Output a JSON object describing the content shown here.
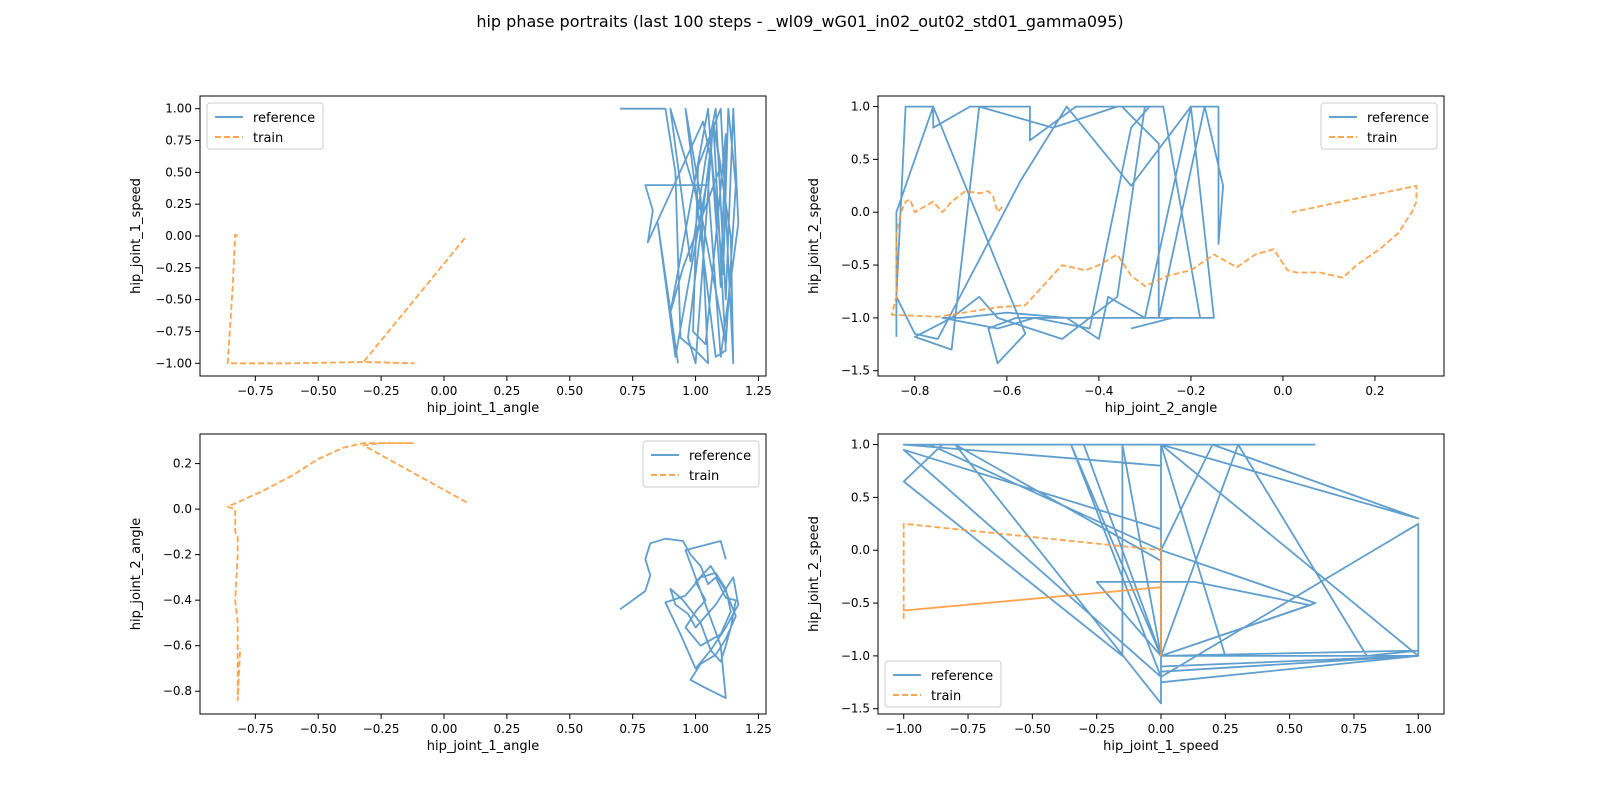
{
  "figure": {
    "title": "hip phase portraits (last 100 steps - _wl09_wG01_in02_out02_std01_gamma095)"
  },
  "colors": {
    "reference": "#4e94c8",
    "train": "#ff9a3c"
  },
  "chart_data": [
    {
      "type": "line",
      "xlabel": "hip_joint_1_angle",
      "ylabel": "hip_joint_1_speed",
      "xlim": [
        -0.97,
        1.28
      ],
      "ylim": [
        -1.1,
        1.1
      ],
      "xticks": [
        -0.75,
        -0.5,
        -0.25,
        0.0,
        0.25,
        0.5,
        0.75,
        1.0,
        1.25
      ],
      "xtick_labels": [
        "−0.75",
        "−0.50",
        "−0.25",
        "0.00",
        "0.25",
        "0.50",
        "0.75",
        "1.00",
        "1.25"
      ],
      "yticks": [
        -1.0,
        -0.75,
        -0.5,
        -0.25,
        0.0,
        0.25,
        0.5,
        0.75,
        1.0
      ],
      "ytick_labels": [
        "−1.00",
        "−0.75",
        "−0.50",
        "−0.25",
        "0.00",
        "0.25",
        "0.50",
        "0.75",
        "1.00"
      ],
      "legend": "top-left",
      "series": [
        {
          "name": "reference",
          "style": "solid",
          "x": [
            0.7,
            0.88,
            0.92,
            0.94,
            1.0,
            1.05,
            1.02,
            0.96,
            1.08,
            1.12,
            1.07,
            1.1,
            0.95,
            0.9,
            1.05,
            1.1,
            1.12,
            1.04,
            0.99,
            1.01,
            1.1,
            1.15,
            1.14,
            1.07,
            1.0,
            0.97,
            1.06,
            1.11,
            1.13,
            1.16,
            1.12,
            1.02,
            0.9,
            0.98,
            1.04,
            1.08,
            1.12,
            1.15,
            1.17,
            1.1,
            1.05,
            0.8,
            0.83,
            0.81,
            1.03,
            1.06,
            0.92,
            0.85,
            0.93
          ],
          "y": [
            1.0,
            1.0,
            0.5,
            -0.8,
            -0.9,
            -1.0,
            0.3,
            1.0,
            -0.95,
            -0.9,
            0.9,
            0.55,
            -0.25,
            -0.6,
            1.0,
            -0.4,
            0.8,
            -0.85,
            -0.75,
            0.55,
            1.0,
            -1.0,
            0.0,
            0.9,
            -1.0,
            -0.8,
            0.7,
            -0.3,
            1.0,
            0.4,
            -0.85,
            0.2,
            1.0,
            -0.2,
            0.6,
            1.0,
            -0.5,
            1.0,
            0.1,
            -0.95,
            0.4,
            0.4,
            0.2,
            -0.05,
            0.9,
            0.6,
            -0.95,
            0.1,
            -1.0
          ]
        },
        {
          "name": "train",
          "style": "dashed",
          "x": [
            -0.82,
            -0.83,
            -0.84,
            -0.86,
            -0.6,
            -0.32,
            -0.12,
            -0.32,
            0.09
          ],
          "y": [
            0.0,
            0.01,
            -0.4,
            -1.0,
            -1.0,
            -0.99,
            -1.0,
            -0.99,
            0.0
          ]
        }
      ]
    },
    {
      "type": "line",
      "xlabel": "hip_joint_2_angle",
      "ylabel": "hip_joint_2_speed",
      "xlim": [
        -0.88,
        0.35
      ],
      "ylim": [
        -1.55,
        1.1
      ],
      "xticks": [
        -0.8,
        -0.6,
        -0.4,
        -0.2,
        0.0,
        0.2
      ],
      "xtick_labels": [
        "−0.8",
        "−0.6",
        "−0.4",
        "−0.2",
        "0.0",
        "0.2"
      ],
      "yticks": [
        -1.5,
        -1.0,
        -0.5,
        0.0,
        0.5,
        1.0
      ],
      "ytick_labels": [
        "−1.5",
        "−1.0",
        "−0.5",
        "0.0",
        "0.5",
        "1.0"
      ],
      "legend": "top-right",
      "series": [
        {
          "name": "reference",
          "style": "solid",
          "x": [
            -0.84,
            -0.84,
            -0.76,
            -0.76,
            -0.68,
            -0.55,
            -0.55,
            -0.45,
            -0.35,
            -0.27,
            -0.27,
            -0.17,
            -0.13,
            -0.14,
            -0.14,
            -0.2,
            -0.33,
            -0.47,
            -0.57,
            -0.75,
            -0.8,
            -0.84,
            -0.82,
            -0.76,
            -0.56,
            -0.62,
            -0.64,
            -0.58,
            -0.4,
            -0.3,
            -0.18,
            -0.26,
            -0.36,
            -0.5,
            -0.66,
            -0.72,
            -0.8,
            -0.72,
            -0.66,
            -0.62,
            -0.48,
            -0.36,
            -0.3,
            -0.29,
            -0.33,
            -0.42,
            -0.54,
            -0.62,
            -0.74,
            -0.7,
            -0.6,
            -0.47,
            -0.4,
            -0.38,
            -0.3,
            -0.2,
            -0.15,
            -0.24,
            -0.33
          ],
          "y": [
            -1.18,
            0.0,
            1.0,
            0.8,
            1.0,
            1.0,
            0.68,
            1.0,
            1.0,
            0.65,
            -1.0,
            1.0,
            0.25,
            -0.3,
            1.0,
            1.0,
            0.25,
            1.0,
            0.3,
            -1.2,
            -1.15,
            -0.8,
            1.0,
            1.0,
            -1.15,
            -1.43,
            -1.1,
            -1.0,
            -1.0,
            -1.0,
            -1.0,
            1.0,
            1.0,
            0.8,
            1.0,
            -1.3,
            -1.18,
            -1.0,
            -0.8,
            -1.0,
            -1.2,
            -0.8,
            1.0,
            1.0,
            0.8,
            -1.1,
            -1.0,
            -1.1,
            -1.0,
            -1.0,
            -0.95,
            -1.0,
            -1.2,
            -0.8,
            -1.0,
            1.0,
            -1.0,
            -1.0,
            -1.1
          ]
        },
        {
          "name": "train",
          "style": "dashed",
          "x": [
            -0.61,
            -0.62,
            -0.63,
            -0.64,
            -0.66,
            -0.69,
            -0.72,
            -0.74,
            -0.76,
            -0.78,
            -0.8,
            -0.81,
            -0.82,
            -0.83,
            -0.84,
            -0.84,
            -0.85,
            -0.75,
            -0.62,
            -0.56,
            -0.48,
            -0.43,
            -0.4,
            -0.36,
            -0.33,
            -0.3,
            -0.25,
            -0.2,
            -0.15,
            -0.1,
            -0.06,
            -0.02,
            0.01,
            0.03,
            0.08,
            0.13,
            0.16,
            0.21,
            0.25,
            0.28,
            0.29,
            0.29,
            0.02
          ],
          "y": [
            0.05,
            0.0,
            0.15,
            0.2,
            0.18,
            0.2,
            0.1,
            0.0,
            0.1,
            0.05,
            0.0,
            0.12,
            0.1,
            0.0,
            -0.2,
            -0.8,
            -0.97,
            -0.99,
            -0.9,
            -0.88,
            -0.5,
            -0.55,
            -0.5,
            -0.4,
            -0.6,
            -0.7,
            -0.6,
            -0.55,
            -0.4,
            -0.52,
            -0.4,
            -0.35,
            -0.55,
            -0.57,
            -0.57,
            -0.62,
            -0.5,
            -0.35,
            -0.2,
            0.0,
            0.1,
            0.25,
            0.0
          ]
        }
      ]
    },
    {
      "type": "line",
      "xlabel": "hip_joint_1_angle",
      "ylabel": "hip_joint_2_angle",
      "xlim": [
        -0.97,
        1.28
      ],
      "ylim": [
        -0.9,
        0.33
      ],
      "xticks": [
        -0.75,
        -0.5,
        -0.25,
        0.0,
        0.25,
        0.5,
        0.75,
        1.0,
        1.25
      ],
      "xtick_labels": [
        "−0.75",
        "−0.50",
        "−0.25",
        "0.00",
        "0.25",
        "0.50",
        "0.75",
        "1.00",
        "1.25"
      ],
      "yticks": [
        -0.8,
        -0.6,
        -0.4,
        -0.2,
        0.0,
        0.2
      ],
      "ytick_labels": [
        "−0.8",
        "−0.6",
        "−0.4",
        "−0.2",
        "0.0",
        "0.2"
      ],
      "legend": "top-right",
      "series": [
        {
          "name": "reference",
          "style": "solid",
          "x": [
            0.7,
            0.8,
            0.82,
            0.8,
            0.82,
            0.88,
            0.95,
            0.98,
            1.02,
            1.05,
            1.08,
            1.12,
            1.16,
            1.14,
            1.12,
            1.1,
            1.06,
            1.02,
            0.95,
            0.9,
            0.92,
            0.97,
            1.0,
            1.04,
            1.08,
            1.12,
            1.15,
            1.17,
            1.12,
            1.06,
            1.0,
            0.94,
            0.88,
            0.96,
            1.02,
            1.08,
            1.12,
            1.14,
            1.1,
            1.02,
            0.96,
            1.0,
            1.04,
            1.0,
            1.06,
            1.12,
            1.16,
            1.12,
            1.08,
            1.02,
            0.98,
            1.03,
            1.12,
            1.1,
            1.05,
            1.0,
            0.96,
            1.1,
            1.12
          ],
          "y": [
            -0.44,
            -0.36,
            -0.29,
            -0.22,
            -0.15,
            -0.13,
            -0.14,
            -0.2,
            -0.25,
            -0.33,
            -0.3,
            -0.39,
            -0.4,
            -0.52,
            -0.6,
            -0.67,
            -0.62,
            -0.5,
            -0.4,
            -0.35,
            -0.42,
            -0.46,
            -0.52,
            -0.47,
            -0.42,
            -0.35,
            -0.3,
            -0.42,
            -0.52,
            -0.62,
            -0.7,
            -0.55,
            -0.41,
            -0.38,
            -0.3,
            -0.28,
            -0.35,
            -0.45,
            -0.55,
            -0.6,
            -0.52,
            -0.45,
            -0.4,
            -0.32,
            -0.25,
            -0.36,
            -0.47,
            -0.57,
            -0.64,
            -0.68,
            -0.75,
            -0.78,
            -0.83,
            -0.6,
            -0.45,
            -0.3,
            -0.18,
            -0.14,
            -0.22
          ]
        },
        {
          "name": "train",
          "style": "dashed",
          "x": [
            0.09,
            -0.32,
            -0.25,
            -0.12,
            -0.32,
            -0.4,
            -0.5,
            -0.6,
            -0.72,
            -0.86,
            -0.83,
            -0.83,
            -0.82,
            -0.82,
            -0.83,
            -0.82,
            -0.82,
            -0.82,
            -0.81
          ],
          "y": [
            0.03,
            0.28,
            0.29,
            0.29,
            0.29,
            0.27,
            0.22,
            0.15,
            0.08,
            0.01,
            0.0,
            -0.1,
            -0.12,
            -0.2,
            -0.4,
            -0.5,
            -0.7,
            -0.84,
            -0.61
          ]
        }
      ]
    },
    {
      "type": "line",
      "xlabel": "hip_joint_1_speed",
      "ylabel": "hip_joint_2_speed",
      "xlim": [
        -1.1,
        1.1
      ],
      "ylim": [
        -1.55,
        1.1
      ],
      "xticks": [
        -1.0,
        -0.75,
        -0.5,
        -0.25,
        0.0,
        0.25,
        0.5,
        0.75,
        1.0
      ],
      "xtick_labels": [
        "−1.00",
        "−0.75",
        "−0.50",
        "−0.25",
        "0.00",
        "0.25",
        "0.50",
        "0.75",
        "1.00"
      ],
      "yticks": [
        -1.5,
        -1.0,
        -0.5,
        0.0,
        0.5,
        1.0
      ],
      "ytick_labels": [
        "−1.5",
        "−1.0",
        "−0.5",
        "0.0",
        "0.5",
        "1.0"
      ],
      "legend": "bottom-left",
      "series": [
        {
          "name": "reference",
          "style": "solid",
          "x": [
            0.6,
            -1.0,
            0.0,
            0.0,
            -1.0,
            0.0,
            0.0,
            -0.8,
            0.0,
            0.0,
            1.0,
            1.0,
            0.0,
            0.0,
            1.0,
            0.0,
            0.0,
            0.2,
            1.0,
            0.0,
            -0.85,
            -1.0,
            -0.15,
            -0.15,
            0.0,
            0.0,
            0.6,
            0.0,
            0.0,
            0.0,
            1.0,
            1.0,
            0.0,
            -0.35,
            0.0,
            0.3,
            0.8,
            1.0,
            0.0,
            -0.25,
            0.13,
            0.58,
            0.0,
            0.0,
            0.0,
            1.0,
            0.0,
            0.0,
            0.25,
            0.65,
            1.0,
            0.0,
            0.0,
            1.0,
            0.0,
            -0.3,
            -0.9,
            0.0,
            0.0
          ],
          "y": [
            1.0,
            1.0,
            0.8,
            -1.2,
            0.95,
            0.2,
            -1.45,
            1.0,
            -0.1,
            -1.0,
            -1.0,
            -1.0,
            -1.15,
            -1.1,
            -1.0,
            -1.0,
            0.0,
            1.0,
            0.3,
            1.0,
            1.0,
            0.65,
            -1.0,
            1.0,
            -1.0,
            -1.0,
            -0.5,
            0.0,
            -1.0,
            -1.25,
            -1.0,
            0.25,
            -1.2,
            1.0,
            -1.0,
            1.0,
            -1.0,
            -0.95,
            -1.0,
            -0.3,
            -0.3,
            -0.52,
            -1.0,
            -1.0,
            -1.1,
            -1.0,
            -1.0,
            1.0,
            -1.0,
            -1.0,
            -1.0,
            -1.0,
            1.0,
            -1.0,
            -1.0,
            1.0,
            1.0,
            0.0,
            -0.1
          ]
        },
        {
          "name": "train",
          "style": "dashed",
          "x": [
            -1.0,
            -1.0,
            0.0,
            0.0,
            -1.0,
            -1.0,
            0.0,
            0.0,
            0.0,
            0.0,
            0.0,
            0.0
          ],
          "y": [
            -0.65,
            0.25,
            0.0,
            -0.35,
            -0.57,
            -0.57,
            -0.35,
            -1.0,
            -0.4,
            0.0,
            0.1,
            0.0
          ]
        }
      ]
    }
  ]
}
